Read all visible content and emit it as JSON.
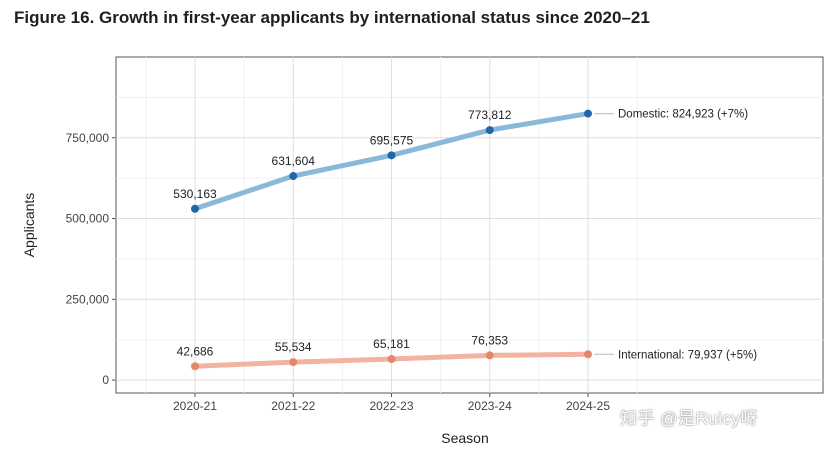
{
  "figure": {
    "title": "Figure 16. Growth in first-year applicants by international status since 2020–21",
    "watermark": "知乎 @是Ruicy呀"
  },
  "chart_data": {
    "type": "line",
    "title": "Figure 16. Growth in first-year applicants by international status since 2020–21",
    "xlabel": "Season",
    "ylabel": "Applicants",
    "categories": [
      "2020-21",
      "2021-22",
      "2022-23",
      "2023-24",
      "2024-25"
    ],
    "yticks": [
      0,
      250000,
      500000,
      750000
    ],
    "ytick_labels": [
      "0",
      "250,000",
      "500,000",
      "750,000"
    ],
    "ylim": [
      -40000,
      1000000
    ],
    "grid": true,
    "series": [
      {
        "name": "Domestic",
        "values": [
          530163,
          631604,
          695575,
          773812,
          824923
        ],
        "point_labels": [
          "530,163",
          "631,604",
          "695,575",
          "773,812"
        ],
        "end_label": "Domestic: 824,923 (+7%)",
        "line_color": "#8ab8d8",
        "point_color": "#1f67a8"
      },
      {
        "name": "International",
        "values": [
          42686,
          55534,
          65181,
          76353,
          79937
        ],
        "point_labels": [
          "42,686",
          "55,534",
          "65,181",
          "76,353"
        ],
        "end_label": "International: 79,937 (+5%)",
        "line_color": "#f2b3a0",
        "point_color": "#e8866c"
      }
    ]
  }
}
